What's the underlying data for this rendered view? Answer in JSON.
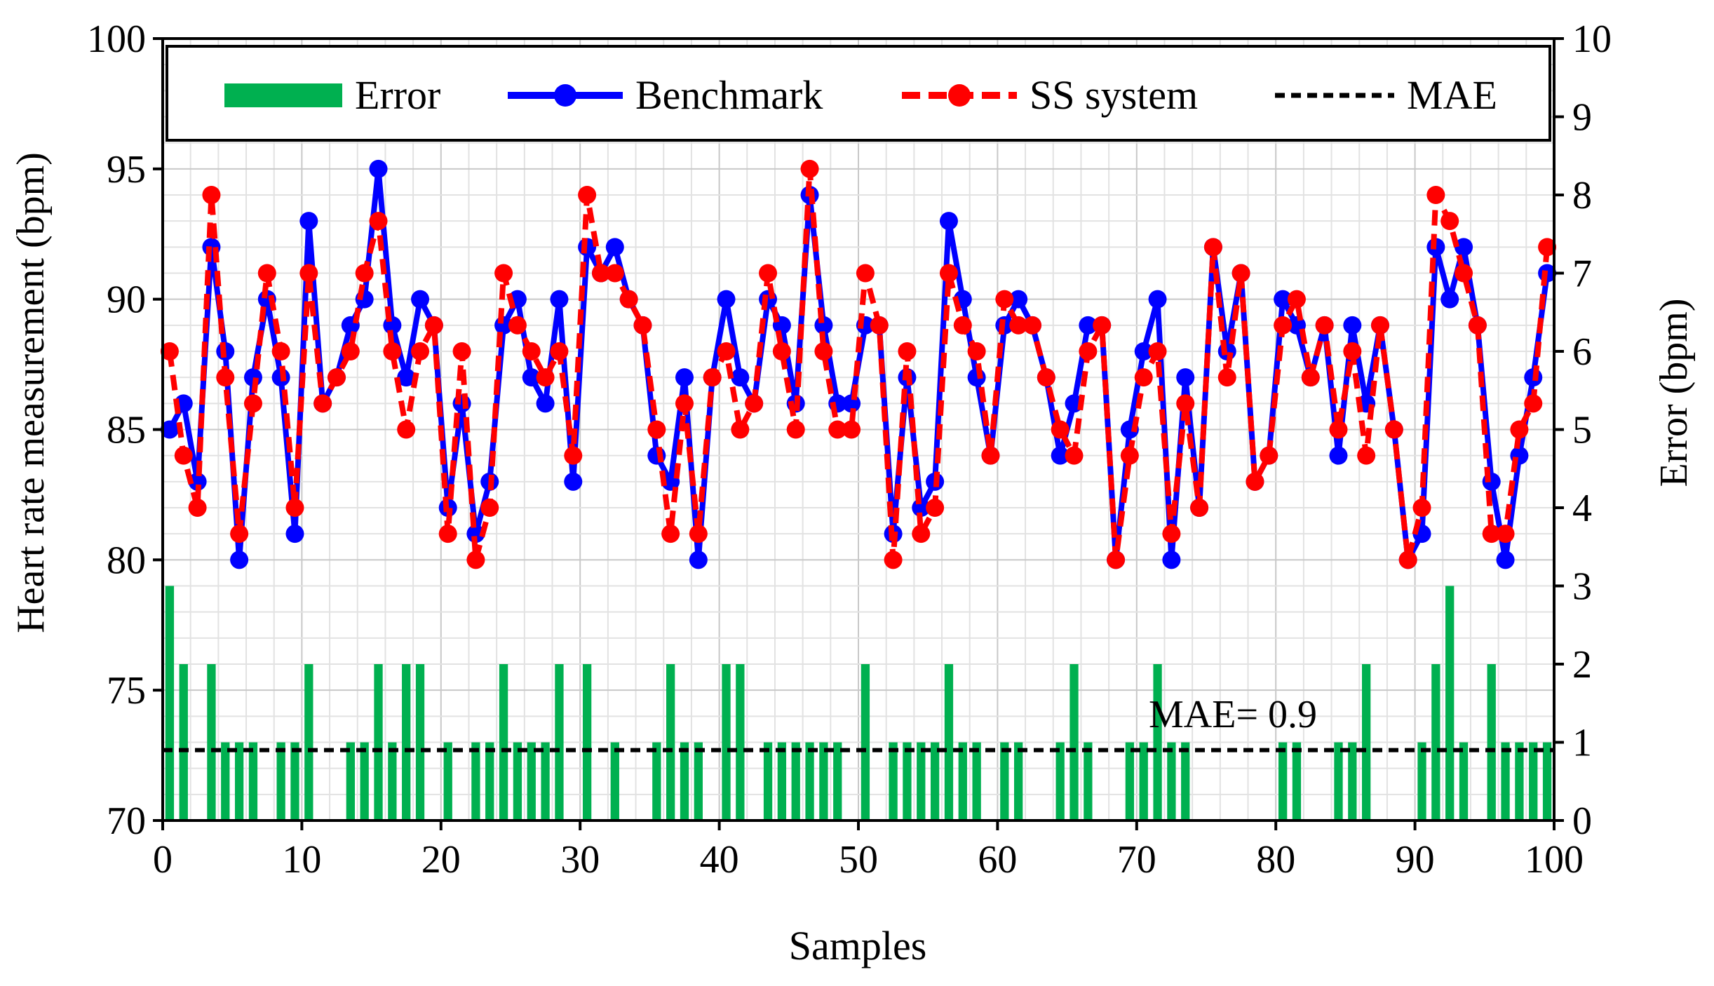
{
  "chart_data": {
    "type": "bar+line",
    "title": "",
    "xlabel": "Samples",
    "ylabel_left": "Heart rate measurement  (bpm)",
    "ylabel_right": "Error (bpm)",
    "xlim": [
      0,
      100
    ],
    "ylim_left": [
      70,
      100
    ],
    "ylim_right": [
      0,
      10
    ],
    "x_ticks": [
      "0",
      "10",
      "20",
      "30",
      "40",
      "50",
      "60",
      "70",
      "80",
      "90",
      "100"
    ],
    "y_left_ticks": [
      "70",
      "75",
      "80",
      "85",
      "90",
      "95",
      "100"
    ],
    "y_right_ticks": [
      "0",
      "1",
      "2",
      "3",
      "4",
      "5",
      "6",
      "7",
      "8",
      "9",
      "10"
    ],
    "grid": true,
    "legend_position": "top",
    "legend": {
      "error": "Error",
      "benchmark": "Benchmark",
      "ss_system": "SS system",
      "mae": "MAE"
    },
    "annotation": "MAE= 0.9",
    "series": [
      {
        "name": "Benchmark",
        "color": "#0000ff",
        "axis": "left",
        "x": [
          0.5,
          1.5,
          2.5,
          3.5,
          4.5,
          5.5,
          6.5,
          7.5,
          8.5,
          9.5,
          10.5,
          11.5,
          12.5,
          13.5,
          14.5,
          15.5,
          16.5,
          17.5,
          18.5,
          19.5,
          20.5,
          21.5,
          22.5,
          23.5,
          24.5,
          25.5,
          26.5,
          27.5,
          28.5,
          29.5,
          30.5,
          31.5,
          32.5,
          33.5,
          34.5,
          35.5,
          36.5,
          37.5,
          38.5,
          39.5,
          40.5,
          41.5,
          42.5,
          43.5,
          44.5,
          45.5,
          46.5,
          47.5,
          48.5,
          49.5,
          50.5,
          51.5,
          52.5,
          53.5,
          54.5,
          55.5,
          56.5,
          57.5,
          58.5,
          59.5,
          60.5,
          61.5,
          62.5,
          63.5,
          64.5,
          65.5,
          66.5,
          67.5,
          68.5,
          69.5,
          70.5,
          71.5,
          72.5,
          73.5,
          74.5,
          75.5,
          76.5,
          77.5,
          78.5,
          79.5,
          80.5,
          81.5,
          82.5,
          83.5,
          84.5,
          85.5,
          86.5,
          87.5,
          88.5,
          89.5,
          90.5,
          91.5,
          92.5,
          93.5,
          94.5,
          95.5,
          96.5,
          97.5,
          98.5,
          99.5
        ],
        "values": [
          85,
          86,
          83,
          92,
          88,
          80,
          87,
          90,
          87,
          81,
          93,
          86,
          87,
          89,
          90,
          95,
          89,
          87,
          90,
          89,
          82,
          86,
          81,
          83,
          89,
          90,
          87,
          86,
          90,
          83,
          92,
          91,
          92,
          90,
          89,
          84,
          83,
          87,
          80,
          87,
          90,
          87,
          86,
          90,
          89,
          86,
          94,
          89,
          86,
          86,
          89,
          89,
          81,
          87,
          82,
          83,
          93,
          90,
          87,
          84,
          89,
          90,
          89,
          87,
          84,
          86,
          89,
          89,
          80,
          85,
          88,
          90,
          80,
          87,
          82,
          92,
          88,
          91,
          83,
          84,
          90,
          89,
          87,
          89,
          84,
          89,
          86,
          89,
          85,
          80,
          81,
          92,
          90,
          92,
          89,
          83,
          80,
          84,
          87,
          91
        ]
      },
      {
        "name": "SS system",
        "color": "#ff0000",
        "axis": "left",
        "x": [
          0.5,
          1.5,
          2.5,
          3.5,
          4.5,
          5.5,
          6.5,
          7.5,
          8.5,
          9.5,
          10.5,
          11.5,
          12.5,
          13.5,
          14.5,
          15.5,
          16.5,
          17.5,
          18.5,
          19.5,
          20.5,
          21.5,
          22.5,
          23.5,
          24.5,
          25.5,
          26.5,
          27.5,
          28.5,
          29.5,
          30.5,
          31.5,
          32.5,
          33.5,
          34.5,
          35.5,
          36.5,
          37.5,
          38.5,
          39.5,
          40.5,
          41.5,
          42.5,
          43.5,
          44.5,
          45.5,
          46.5,
          47.5,
          48.5,
          49.5,
          50.5,
          51.5,
          52.5,
          53.5,
          54.5,
          55.5,
          56.5,
          57.5,
          58.5,
          59.5,
          60.5,
          61.5,
          62.5,
          63.5,
          64.5,
          65.5,
          66.5,
          67.5,
          68.5,
          69.5,
          70.5,
          71.5,
          72.5,
          73.5,
          74.5,
          75.5,
          76.5,
          77.5,
          78.5,
          79.5,
          80.5,
          81.5,
          82.5,
          83.5,
          84.5,
          85.5,
          86.5,
          87.5,
          88.5,
          89.5,
          90.5,
          91.5,
          92.5,
          93.5,
          94.5,
          95.5,
          96.5,
          97.5,
          98.5,
          99.5
        ],
        "values": [
          88,
          84,
          82,
          94,
          87,
          81,
          86,
          91,
          88,
          82,
          91,
          86,
          87,
          88,
          91,
          93,
          88,
          85,
          88,
          89,
          81,
          88,
          80,
          82,
          91,
          89,
          88,
          87,
          88,
          84,
          94,
          91,
          91,
          90,
          89,
          85,
          81,
          86,
          81,
          87,
          88,
          85,
          86,
          91,
          88,
          85,
          95,
          88,
          85,
          85,
          91,
          89,
          80,
          88,
          81,
          82,
          91,
          89,
          88,
          84,
          90,
          89,
          89,
          87,
          85,
          84,
          88,
          89,
          80,
          84,
          87,
          88,
          81,
          86,
          82,
          92,
          87,
          91,
          83,
          84,
          89,
          90,
          87,
          89,
          85,
          88,
          84,
          89,
          85,
          80,
          82,
          94,
          93,
          91,
          89,
          81,
          81,
          85,
          86,
          92
        ]
      },
      {
        "name": "Error",
        "color": "#00b050",
        "axis": "right",
        "type": "bar",
        "x": [
          0.5,
          1.5,
          2.5,
          3.5,
          4.5,
          5.5,
          6.5,
          7.5,
          8.5,
          9.5,
          10.5,
          11.5,
          12.5,
          13.5,
          14.5,
          15.5,
          16.5,
          17.5,
          18.5,
          19.5,
          20.5,
          21.5,
          22.5,
          23.5,
          24.5,
          25.5,
          26.5,
          27.5,
          28.5,
          29.5,
          30.5,
          31.5,
          32.5,
          33.5,
          34.5,
          35.5,
          36.5,
          37.5,
          38.5,
          39.5,
          40.5,
          41.5,
          42.5,
          43.5,
          44.5,
          45.5,
          46.5,
          47.5,
          48.5,
          49.5,
          50.5,
          51.5,
          52.5,
          53.5,
          54.5,
          55.5,
          56.5,
          57.5,
          58.5,
          59.5,
          60.5,
          61.5,
          62.5,
          63.5,
          64.5,
          65.5,
          66.5,
          67.5,
          68.5,
          69.5,
          70.5,
          71.5,
          72.5,
          73.5,
          74.5,
          75.5,
          76.5,
          77.5,
          78.5,
          79.5,
          80.5,
          81.5,
          82.5,
          83.5,
          84.5,
          85.5,
          86.5,
          87.5,
          88.5,
          89.5,
          90.5,
          91.5,
          92.5,
          93.5,
          94.5,
          95.5,
          96.5,
          97.5,
          98.5,
          99.5
        ],
        "values": [
          3,
          2,
          0,
          2,
          1,
          1,
          1,
          0,
          1,
          1,
          2,
          0,
          0,
          1,
          1,
          2,
          1,
          2,
          2,
          0,
          1,
          0,
          1,
          1,
          2,
          1,
          1,
          1,
          2,
          0,
          2,
          0,
          1,
          0,
          0,
          1,
          2,
          1,
          1,
          0,
          2,
          2,
          0,
          1,
          1,
          1,
          1,
          1,
          1,
          0,
          2,
          0,
          1,
          1,
          1,
          1,
          2,
          1,
          1,
          0,
          1,
          1,
          0,
          0,
          1,
          2,
          1,
          0,
          0,
          1,
          1,
          2,
          1,
          1,
          0,
          0,
          0,
          0,
          0,
          0,
          1,
          1,
          0,
          0,
          1,
          1,
          2,
          0,
          0,
          0,
          1,
          2,
          3,
          1,
          0,
          2,
          1,
          1,
          1,
          1
        ]
      },
      {
        "name": "MAE",
        "color": "#000000",
        "axis": "right",
        "type": "hline",
        "value": 0.9
      }
    ]
  }
}
